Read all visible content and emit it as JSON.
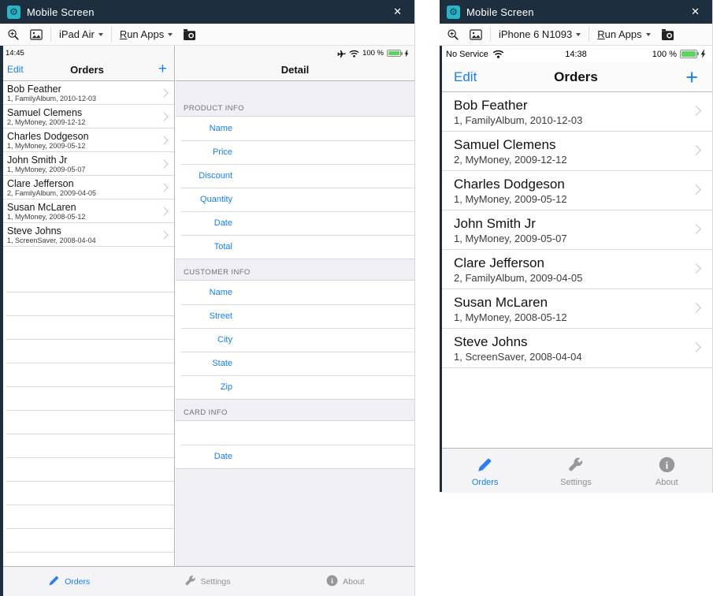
{
  "colors": {
    "accent_blue": "#157efd",
    "titlebar_bg": "#1d2f3f",
    "app_icon_teal": "#27b5c9",
    "battery_green": "#58d65e"
  },
  "window_left": {
    "title": "Mobile Screen",
    "close_glyph": "✕",
    "toolbar": {
      "device": "iPad Air",
      "run_apps_prefix": "R",
      "run_apps_rest": "un Apps"
    },
    "status": {
      "time": "14:45",
      "battery_pct": "100 %"
    },
    "nav": {
      "edit": "Edit",
      "title": "Orders",
      "add": "+"
    }
  },
  "window_right": {
    "title": "Mobile Screen",
    "close_glyph": "✕",
    "toolbar": {
      "device": "iPhone 6 N1093",
      "run_apps_prefix": "R",
      "run_apps_rest": "un Apps"
    },
    "status": {
      "carrier": "No Service",
      "time": "14:38",
      "battery_pct": "100 %"
    },
    "nav": {
      "edit": "Edit",
      "title": "Orders",
      "add": "+"
    }
  },
  "orders": [
    {
      "name": "Bob Feather",
      "detail": "1, FamilyAlbum, 2010-12-03"
    },
    {
      "name": "Samuel Clemens",
      "detail": "2, MyMoney, 2009-12-12"
    },
    {
      "name": "Charles Dodgeson",
      "detail": "1, MyMoney, 2009-05-12"
    },
    {
      "name": "John Smith Jr",
      "detail": "1, MyMoney, 2009-05-07"
    },
    {
      "name": "Clare Jefferson",
      "detail": "2, FamilyAlbum, 2009-04-05"
    },
    {
      "name": "Susan McLaren",
      "detail": "1, MyMoney, 2008-05-12"
    },
    {
      "name": "Steve Johns",
      "detail": "1, ScreenSaver, 2008-04-04"
    }
  ],
  "detail_form": {
    "title": "Detail",
    "sections": [
      {
        "header": "PRODUCT INFO",
        "rows": [
          "Name",
          "Price",
          "Discount",
          "Quantity",
          "Date",
          "Total"
        ]
      },
      {
        "header": "CUSTOMER INFO",
        "rows": [
          "Name",
          "Street",
          "City",
          "State",
          "Zip"
        ]
      },
      {
        "header": "CARD INFO",
        "rows": [
          "",
          "Date"
        ]
      }
    ]
  },
  "tabs": [
    {
      "label": "Orders",
      "icon": "pencil-icon",
      "active": true
    },
    {
      "label": "Settings",
      "icon": "wrench-icon",
      "active": false
    },
    {
      "label": "About",
      "icon": "info-icon",
      "active": false
    }
  ],
  "icon_names": {
    "titlebar": "gear-icon",
    "toolbar": [
      "zoom-icon",
      "image-icon",
      "screenshot-camera-icon",
      "dropdown-caret-icon"
    ],
    "status": [
      "airplane-icon",
      "wifi-icon",
      "battery-icon",
      "bolt-icon"
    ],
    "list": "chevron-right-icon"
  }
}
